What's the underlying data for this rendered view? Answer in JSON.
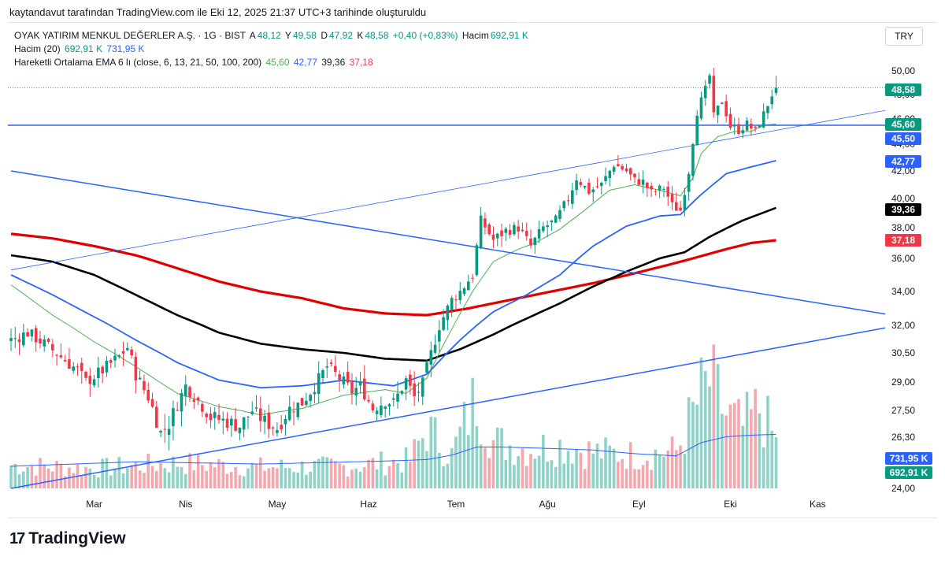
{
  "caption": "kaytandavut tarafından TradingView.com ile Eki 12, 2025 21:37 UTC+3 tarihinde oluşturuldu",
  "legend": {
    "symbol": "OYAK YATIRIM MENKUL DEĞERLER A.Ş. · 1G · BIST",
    "o_label": "A",
    "o": "48,12",
    "h_label": "Y",
    "h": "49,58",
    "l_label": "D",
    "l": "47,92",
    "c_label": "K",
    "c": "48,58",
    "change": "+0,40 (+0,83%)",
    "vol_label": "Hacim",
    "vol": "692,91 K",
    "vol_ma_name": "Hacim (20)",
    "vol_ma_v1": "692,91 K",
    "vol_ma_v2": "731,95 K",
    "ema_name": "Hareketli Ortalama EMA 6 lı (close, 6, 13, 21, 50, 100, 200)",
    "ema_v1": "45,60",
    "ema_v2": "42,77",
    "ema_v3": "39,36",
    "ema_v4": "37,18"
  },
  "currency": "TRY",
  "brand": "TradingView",
  "colors": {
    "up": "#089981",
    "down": "#f23645",
    "ema13": "#4caf50",
    "ema21": "#2962ff",
    "ema50": "#000000",
    "ema100": "#e00000",
    "trend": "#2962ff"
  },
  "chart_data": {
    "type": "candlestick",
    "x_ticks": [
      "Mar",
      "Nis",
      "May",
      "Haz",
      "Tem",
      "Ağu",
      "Eyl",
      "Eki",
      "Kas"
    ],
    "y_ticks": [
      "50,00",
      "48,00",
      "46,00",
      "44,00",
      "42,00",
      "40,00",
      "38,00",
      "36,00",
      "34,00",
      "32,00",
      "30,50",
      "29,00",
      "27,50",
      "26,30",
      "24,00"
    ],
    "price_labels": [
      {
        "text": "48,58",
        "color": "#089981"
      },
      {
        "text": "45,60",
        "color": "#089981"
      },
      {
        "text": "45,50",
        "color": "#2962ff"
      },
      {
        "text": "42,77",
        "color": "#2962ff"
      },
      {
        "text": "39,36",
        "color": "#000000"
      },
      {
        "text": "37,18",
        "color": "#f23645"
      },
      {
        "text": "731,95 K",
        "color": "#2962ff"
      },
      {
        "text": "692,91 K",
        "color": "#089981"
      }
    ],
    "horizontal_line": 45.5,
    "close_key": [
      [
        0,
        31.2
      ],
      [
        4,
        31.6
      ],
      [
        8,
        31.0
      ],
      [
        12,
        30.3
      ],
      [
        16,
        29.6
      ],
      [
        18,
        29.0
      ],
      [
        22,
        29.6
      ],
      [
        26,
        30.3
      ],
      [
        28,
        30.8
      ],
      [
        30,
        29.4
      ],
      [
        33,
        28.2
      ],
      [
        36,
        26.5
      ],
      [
        38,
        26.9
      ],
      [
        42,
        28.8
      ],
      [
        45,
        28.0
      ],
      [
        48,
        27.2
      ],
      [
        52,
        27.0
      ],
      [
        55,
        26.8
      ],
      [
        58,
        27.5
      ],
      [
        61,
        27.0
      ],
      [
        64,
        26.7
      ],
      [
        67,
        27.6
      ],
      [
        70,
        27.9
      ],
      [
        73,
        28.8
      ],
      [
        76,
        29.8
      ],
      [
        79,
        29.2
      ],
      [
        82,
        28.5
      ],
      [
        84,
        28.8
      ],
      [
        87,
        27.6
      ],
      [
        90,
        28.0
      ],
      [
        92,
        27.9
      ],
      [
        95,
        29.1
      ],
      [
        97,
        28.2
      ],
      [
        99,
        28.9
      ],
      [
        103,
        32.0
      ],
      [
        106,
        33.5
      ],
      [
        108,
        34.0
      ],
      [
        111,
        35.0
      ],
      [
        113,
        38.5
      ],
      [
        116,
        37.2
      ],
      [
        119,
        37.8
      ],
      [
        122,
        38.0
      ],
      [
        125,
        36.8
      ],
      [
        128,
        38.0
      ],
      [
        131,
        38.5
      ],
      [
        134,
        40.0
      ],
      [
        136,
        41.5
      ],
      [
        139,
        40.5
      ],
      [
        142,
        41.0
      ],
      [
        145,
        42.5
      ],
      [
        148,
        42.0
      ],
      [
        150,
        41.3
      ],
      [
        152,
        41.2
      ],
      [
        154,
        40.4
      ],
      [
        157,
        40.8
      ],
      [
        159,
        39.5
      ],
      [
        161,
        39.2
      ],
      [
        163,
        42.0
      ],
      [
        165,
        46.6
      ],
      [
        167,
        48.4
      ],
      [
        168,
        49.6
      ],
      [
        169,
        46.2
      ],
      [
        171,
        47.5
      ],
      [
        173,
        45.4
      ],
      [
        175,
        45.1
      ],
      [
        177,
        45.6
      ],
      [
        179,
        45.0
      ],
      [
        181,
        46.4
      ],
      [
        183,
        48.0
      ],
      [
        184,
        48.58
      ]
    ],
    "ema13_key": [
      [
        0,
        34.4
      ],
      [
        10,
        32.6
      ],
      [
        20,
        31.1
      ],
      [
        30,
        29.8
      ],
      [
        40,
        28.4
      ],
      [
        50,
        27.7
      ],
      [
        60,
        27.3
      ],
      [
        70,
        27.6
      ],
      [
        80,
        28.3
      ],
      [
        90,
        28.6
      ],
      [
        95,
        28.4
      ],
      [
        100,
        29.2
      ],
      [
        106,
        31.8
      ],
      [
        111,
        34.0
      ],
      [
        116,
        35.8
      ],
      [
        122,
        36.6
      ],
      [
        126,
        37.0
      ],
      [
        132,
        37.9
      ],
      [
        138,
        39.2
      ],
      [
        144,
        40.6
      ],
      [
        150,
        41.0
      ],
      [
        156,
        40.6
      ],
      [
        161,
        40.2
      ],
      [
        164,
        41.5
      ],
      [
        166,
        43.3
      ],
      [
        170,
        44.6
      ],
      [
        174,
        45.0
      ],
      [
        178,
        45.0
      ],
      [
        181,
        45.5
      ],
      [
        184,
        45.6
      ]
    ],
    "ema21_key": [
      [
        0,
        35.0
      ],
      [
        10,
        33.8
      ],
      [
        20,
        32.5
      ],
      [
        30,
        31.2
      ],
      [
        40,
        30.0
      ],
      [
        50,
        29.1
      ],
      [
        60,
        28.7
      ],
      [
        70,
        28.8
      ],
      [
        80,
        29.1
      ],
      [
        92,
        28.8
      ],
      [
        100,
        29.4
      ],
      [
        108,
        31.2
      ],
      [
        116,
        32.8
      ],
      [
        124,
        33.8
      ],
      [
        132,
        35.0
      ],
      [
        140,
        36.8
      ],
      [
        148,
        38.1
      ],
      [
        156,
        38.8
      ],
      [
        161,
        38.9
      ],
      [
        166,
        40.3
      ],
      [
        172,
        41.8
      ],
      [
        178,
        42.3
      ],
      [
        184,
        42.77
      ]
    ],
    "ema50_key": [
      [
        0,
        36.2
      ],
      [
        10,
        35.8
      ],
      [
        20,
        35.0
      ],
      [
        30,
        33.8
      ],
      [
        40,
        32.6
      ],
      [
        50,
        31.6
      ],
      [
        60,
        31.0
      ],
      [
        70,
        30.7
      ],
      [
        80,
        30.5
      ],
      [
        90,
        30.2
      ],
      [
        100,
        30.1
      ],
      [
        108,
        30.7
      ],
      [
        116,
        31.5
      ],
      [
        124,
        32.4
      ],
      [
        132,
        33.3
      ],
      [
        140,
        34.3
      ],
      [
        148,
        35.2
      ],
      [
        156,
        36.0
      ],
      [
        162,
        36.4
      ],
      [
        168,
        37.4
      ],
      [
        176,
        38.5
      ],
      [
        184,
        39.36
      ]
    ],
    "ema100_key": [
      [
        0,
        37.6
      ],
      [
        10,
        37.3
      ],
      [
        20,
        36.8
      ],
      [
        30,
        36.2
      ],
      [
        40,
        35.4
      ],
      [
        50,
        34.6
      ],
      [
        60,
        34.0
      ],
      [
        70,
        33.6
      ],
      [
        80,
        33.0
      ],
      [
        90,
        32.7
      ],
      [
        100,
        32.6
      ],
      [
        110,
        33.0
      ],
      [
        120,
        33.5
      ],
      [
        130,
        34.0
      ],
      [
        140,
        34.5
      ],
      [
        150,
        35.1
      ],
      [
        158,
        35.6
      ],
      [
        164,
        36.0
      ],
      [
        172,
        36.6
      ],
      [
        178,
        37.0
      ],
      [
        184,
        37.18
      ]
    ],
    "trend_lines": [
      {
        "from": [
          0,
          42.0
        ],
        "to": [
          214,
          32.5
        ],
        "width": 1.5
      },
      {
        "from": [
          0,
          24.0
        ],
        "to": [
          214,
          32.0
        ],
        "width": 1.5
      },
      {
        "from": [
          0,
          35.3
        ],
        "to": [
          214,
          46.9
        ],
        "width": 0.8
      }
    ],
    "volume_K_key": [
      [
        0,
        350
      ],
      [
        20,
        300
      ],
      [
        40,
        380
      ],
      [
        60,
        320
      ],
      [
        80,
        330
      ],
      [
        96,
        420
      ],
      [
        100,
        900
      ],
      [
        106,
        500
      ],
      [
        112,
        1400
      ],
      [
        116,
        700
      ],
      [
        124,
        600
      ],
      [
        132,
        650
      ],
      [
        140,
        550
      ],
      [
        150,
        500
      ],
      [
        160,
        560
      ],
      [
        166,
        1400
      ],
      [
        168,
        1600
      ],
      [
        172,
        1100
      ],
      [
        176,
        900
      ],
      [
        180,
        1200
      ],
      [
        184,
        692.91
      ]
    ],
    "volume_ma_K_key": [
      [
        0,
        300
      ],
      [
        30,
        360
      ],
      [
        60,
        330
      ],
      [
        90,
        370
      ],
      [
        100,
        390
      ],
      [
        106,
        450
      ],
      [
        112,
        560
      ],
      [
        118,
        560
      ],
      [
        130,
        540
      ],
      [
        140,
        520
      ],
      [
        150,
        470
      ],
      [
        160,
        440
      ],
      [
        166,
        620
      ],
      [
        172,
        700
      ],
      [
        178,
        720
      ],
      [
        184,
        731.95
      ]
    ]
  }
}
